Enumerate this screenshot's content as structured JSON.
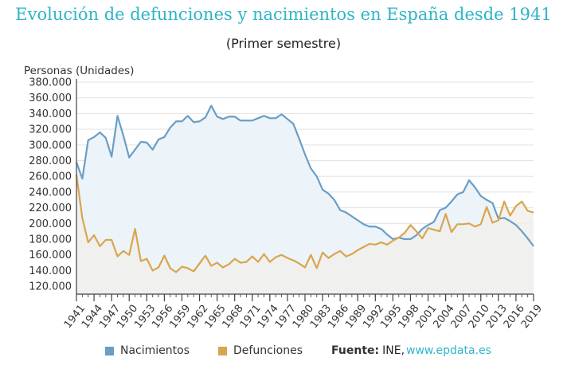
{
  "chart_data": {
    "type": "area",
    "title": "Evolución de defunciones y nacimientos en España desde 1941",
    "subtitle": "(Primer semestre)",
    "ylabel": "Personas (Unidades)",
    "xlabel": "",
    "xlim": [
      1941,
      2019
    ],
    "ylim": [
      110000,
      380000
    ],
    "yticks": [
      120000,
      140000,
      160000,
      180000,
      200000,
      220000,
      240000,
      260000,
      280000,
      300000,
      320000,
      340000,
      360000,
      380000
    ],
    "ytick_labels": [
      "120.000",
      "140.000",
      "160.000",
      "180.000",
      "200.000",
      "220.000",
      "240.000",
      "260.000",
      "280.000",
      "300.000",
      "320.000",
      "340.000",
      "360.000",
      "380.000"
    ],
    "xticks": [
      1941,
      1944,
      1947,
      1950,
      1953,
      1956,
      1959,
      1962,
      1965,
      1968,
      1971,
      1974,
      1977,
      1980,
      1983,
      1986,
      1989,
      1992,
      1995,
      1998,
      2001,
      2004,
      2007,
      2010,
      2013,
      2016,
      2019
    ],
    "x": [
      1941,
      1942,
      1943,
      1944,
      1945,
      1946,
      1947,
      1948,
      1949,
      1950,
      1951,
      1952,
      1953,
      1954,
      1955,
      1956,
      1957,
      1958,
      1959,
      1960,
      1961,
      1962,
      1963,
      1964,
      1965,
      1966,
      1967,
      1968,
      1969,
      1970,
      1971,
      1972,
      1973,
      1974,
      1975,
      1976,
      1977,
      1978,
      1979,
      1980,
      1981,
      1982,
      1983,
      1984,
      1985,
      1986,
      1987,
      1988,
      1989,
      1990,
      1991,
      1992,
      1993,
      1994,
      1995,
      1996,
      1997,
      1998,
      1999,
      2000,
      2001,
      2002,
      2003,
      2004,
      2005,
      2006,
      2007,
      2008,
      2009,
      2010,
      2011,
      2012,
      2013,
      2014,
      2015,
      2016,
      2017,
      2018,
      2019
    ],
    "series": [
      {
        "name": "Nacimientos",
        "color": "#6a9ec5",
        "fill": "#ecf3f9",
        "values": [
          278000,
          257000,
          306000,
          310000,
          316000,
          309000,
          285000,
          337000,
          312000,
          284000,
          294000,
          304000,
          303000,
          294000,
          307000,
          310000,
          322000,
          330000,
          330000,
          337000,
          329000,
          330000,
          335000,
          350000,
          336000,
          333000,
          336000,
          336000,
          331000,
          331000,
          331000,
          334000,
          337000,
          334000,
          334000,
          339000,
          333000,
          327000,
          308000,
          288000,
          270000,
          260000,
          243000,
          238000,
          230000,
          217000,
          214000,
          209000,
          204000,
          199000,
          196000,
          196000,
          193000,
          186000,
          180000,
          182000,
          180000,
          180000,
          185000,
          193000,
          198000,
          202000,
          217000,
          220000,
          228000,
          237000,
          240000,
          255000,
          246000,
          235000,
          230000,
          226000,
          206000,
          207000,
          203000,
          198000,
          190000,
          181000,
          171000
        ]
      },
      {
        "name": "Defunciones",
        "color": "#d9a54e",
        "fill": "#f1f0ec",
        "values": [
          262000,
          207000,
          176000,
          185000,
          171000,
          179000,
          179000,
          158000,
          165000,
          160000,
          193000,
          152000,
          155000,
          140000,
          144000,
          159000,
          143000,
          138000,
          145000,
          143000,
          139000,
          149000,
          159000,
          146000,
          150000,
          144000,
          148000,
          155000,
          150000,
          151000,
          158000,
          151000,
          161000,
          151000,
          157000,
          160000,
          156000,
          153000,
          149000,
          144000,
          160000,
          143000,
          163000,
          156000,
          161000,
          165000,
          158000,
          161000,
          166000,
          170000,
          174000,
          173000,
          176000,
          173000,
          178000,
          182000,
          188000,
          198000,
          190000,
          181000,
          194000,
          192000,
          190000,
          212000,
          189000,
          199000,
          199000,
          200000,
          196000,
          199000,
          221000,
          201000,
          204000,
          228000,
          210000,
          222000,
          228000,
          216000,
          214000
        ]
      }
    ]
  },
  "legend": {
    "items": [
      "Nacimientos",
      "Defunciones"
    ],
    "fuente_label": "Fuente:",
    "fuente_text": "INE,",
    "fuente_link": "www.epdata.es"
  }
}
